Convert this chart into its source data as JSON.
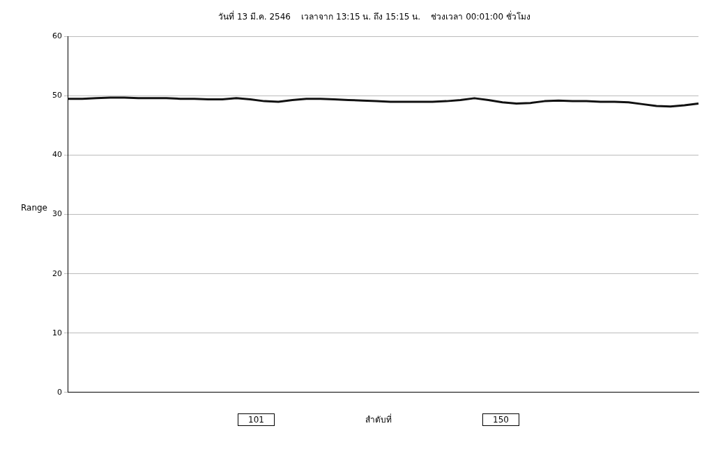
{
  "chart_data": {
    "type": "line",
    "title": "วันที่ 13 มี.ค. 2546    เวลาจาก 13:15 น. ถึง 15:15 น.    ช่วงเวลา 00:01:00 ชั่วโมง",
    "xlabel": "สำดับที่",
    "ylabel": "Range",
    "categories": [
      null,
      null,
      null,
      null,
      null,
      null,
      null,
      null,
      null,
      null,
      null,
      null,
      null,
      null,
      null,
      null,
      null,
      null,
      null,
      null,
      null,
      null,
      null,
      null,
      null,
      null,
      null,
      null,
      null,
      null,
      null,
      null,
      null,
      null,
      null,
      null,
      null,
      null,
      null,
      null,
      null,
      null,
      null,
      null,
      null,
      null
    ],
    "series": [
      {
        "color": "#111111",
        "values": [
          49.5,
          49.5,
          49.6,
          49.7,
          49.7,
          49.6,
          49.6,
          49.6,
          49.5,
          49.5,
          49.4,
          49.4,
          49.6,
          49.4,
          49.1,
          49.0,
          49.3,
          49.5,
          49.5,
          49.4,
          49.3,
          49.2,
          49.1,
          49.0,
          49.0,
          49.0,
          49.0,
          49.1,
          49.3,
          49.6,
          49.3,
          48.9,
          48.7,
          48.8,
          49.1,
          49.2,
          49.1,
          49.1,
          49.0,
          49.0,
          48.9,
          48.6,
          48.3,
          48.2,
          48.4,
          48.7
        ]
      }
    ],
    "ylim": [
      0,
      60
    ],
    "yticks": [
      0,
      10,
      20,
      30,
      40,
      50,
      60
    ],
    "grid": "y",
    "legend": false,
    "marker": "none",
    "line_style": "solid",
    "annotations": [
      "101",
      "150"
    ]
  }
}
